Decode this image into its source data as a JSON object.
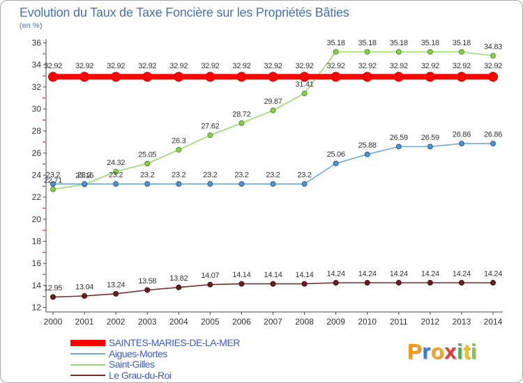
{
  "chart_data": {
    "type": "line",
    "title": "Evolution du Taux de Taxe Foncière sur les Propriétés Bâties",
    "subtitle": "(en %)",
    "xlabel": "",
    "ylabel": "",
    "x": [
      2000,
      2001,
      2002,
      2003,
      2004,
      2005,
      2006,
      2007,
      2008,
      2009,
      2010,
      2011,
      2012,
      2013,
      2014
    ],
    "ylim": [
      12,
      36
    ],
    "yticks": [
      12,
      14,
      16,
      18,
      20,
      22,
      24,
      26,
      28,
      30,
      32,
      34,
      36
    ],
    "grid": false,
    "legend": "bottom-left",
    "series": [
      {
        "name": "SAINTES-MARIES-DE-LA-MER",
        "color": "#ff0000",
        "marker_color": "#ff0000",
        "marker_edge": "#cc0000",
        "values": [
          32.92,
          32.92,
          32.92,
          32.92,
          32.92,
          32.92,
          32.92,
          32.92,
          32.92,
          32.92,
          32.92,
          32.92,
          32.92,
          32.92,
          32.92
        ]
      },
      {
        "name": "Aigues-Mortes",
        "color": "#6ea8dc",
        "marker_color": "#4f94d4",
        "marker_edge": "#2b5d8c",
        "values": [
          23.2,
          23.2,
          23.2,
          23.2,
          23.2,
          23.2,
          23.2,
          23.2,
          23.2,
          25.06,
          25.88,
          26.59,
          26.59,
          26.86,
          26.86
        ]
      },
      {
        "name": "Saint-Gilles",
        "color": "#9ad96a",
        "marker_color": "#8ccf4d",
        "marker_edge": "#4f8f22",
        "values": [
          22.71,
          23.16,
          24.32,
          25.05,
          26.3,
          27.62,
          28.72,
          29.87,
          31.41,
          35.18,
          35.18,
          35.18,
          35.18,
          35.18,
          34.83
        ]
      },
      {
        "name": "Le Grau-du-Roi",
        "color": "#7a2a2a",
        "marker_color": "#6e1c1c",
        "marker_edge": "#3d0d0d",
        "values": [
          12.95,
          13.04,
          13.24,
          13.58,
          13.82,
          14.07,
          14.14,
          14.14,
          14.14,
          14.24,
          14.24,
          14.24,
          14.24,
          14.24,
          14.24
        ]
      }
    ],
    "axis_color": "#444444",
    "minor_tick_color": "#cc3333",
    "label_color": "#333333"
  },
  "logo": {
    "text": "Proxiti",
    "letter_colors": [
      "#f39c12",
      "#3a7bd5",
      "#f5a623",
      "#e03c3c",
      "#4caf50",
      "#f4c20d",
      "#8bc34a"
    ]
  }
}
